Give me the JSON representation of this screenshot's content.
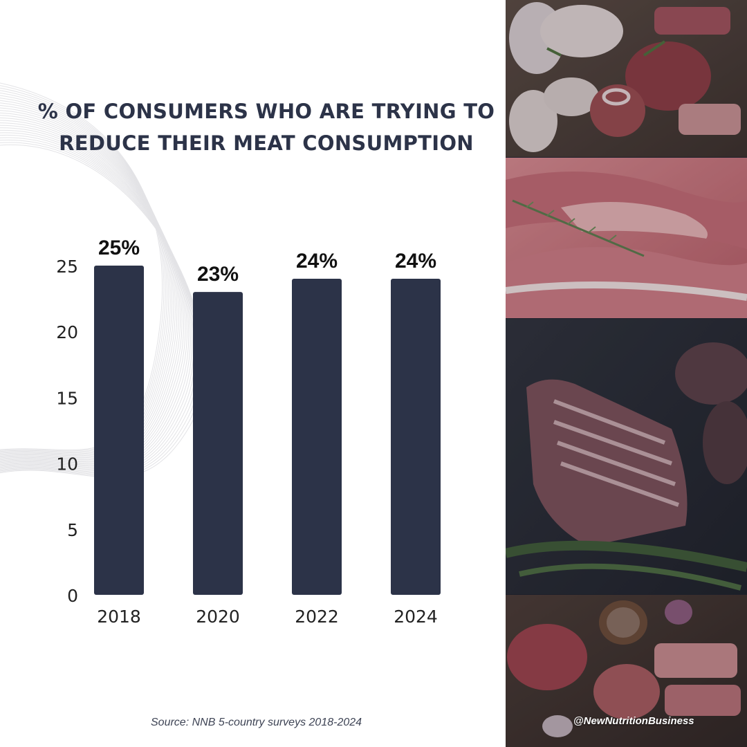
{
  "chart_data": {
    "type": "bar",
    "title": "% OF CONSUMERS WHO ARE TRYING TO REDUCE THEIR MEAT CONSUMPTION",
    "categories": [
      "2018",
      "2020",
      "2022",
      "2024"
    ],
    "values": [
      25,
      23,
      24,
      24
    ],
    "data_labels": [
      "25%",
      "23%",
      "24%",
      "24%"
    ],
    "yticks": [
      0,
      5,
      10,
      15,
      20,
      25
    ],
    "ylim": [
      0,
      25
    ],
    "xlabel": "",
    "ylabel": "",
    "grid": false,
    "legend": "none",
    "bar_color": "#2c3348"
  },
  "source": "Source: NNB 5-country surveys 2018-2024",
  "handle": "@NewNutritionBusiness",
  "colors": {
    "title": "#2c3348",
    "bar": "#2c3348",
    "axis_text": "#222222"
  }
}
